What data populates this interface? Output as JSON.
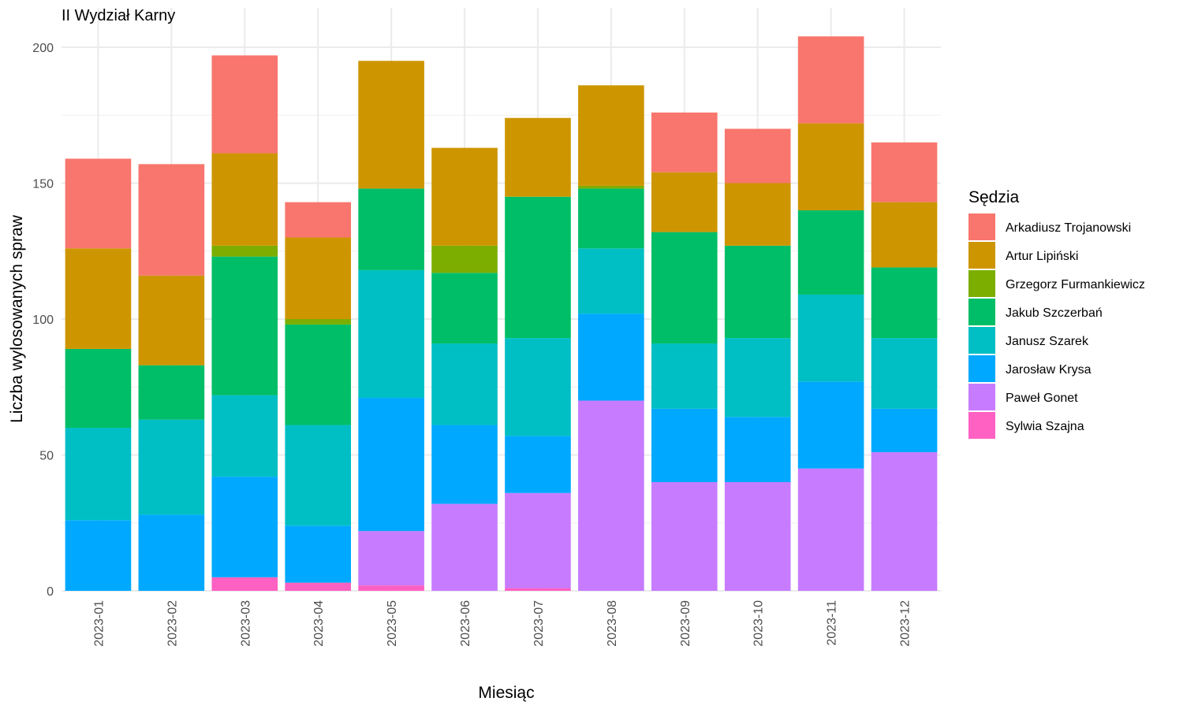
{
  "chart_data": {
    "type": "bar",
    "stacked": true,
    "title": "II Wydział Karny",
    "xlabel": "Miesiąc",
    "ylabel": "Liczba wylosowanych spraw",
    "ylim": [
      0,
      210
    ],
    "yticks": [
      0,
      50,
      100,
      150,
      200
    ],
    "grid": true,
    "legend_position": "right",
    "legend_title": "Sędzia",
    "categories": [
      "2023-01",
      "2023-02",
      "2023-03",
      "2023-04",
      "2023-05",
      "2023-06",
      "2023-07",
      "2023-08",
      "2023-09",
      "2023-10",
      "2023-11",
      "2023-12"
    ],
    "series": [
      {
        "name": "Sylwia Szajna",
        "color": "#FF61C3",
        "values": [
          0,
          0,
          5,
          3,
          2,
          0,
          1,
          0,
          0,
          0,
          0,
          0
        ]
      },
      {
        "name": "Paweł Gonet",
        "color": "#C77CFF",
        "values": [
          0,
          0,
          0,
          0,
          20,
          32,
          35,
          70,
          40,
          40,
          45,
          51
        ]
      },
      {
        "name": "Jarosław Krysa",
        "color": "#00A9FF",
        "values": [
          26,
          28,
          37,
          21,
          49,
          29,
          21,
          32,
          27,
          24,
          32,
          16
        ]
      },
      {
        "name": "Janusz Szarek",
        "color": "#00BFC4",
        "values": [
          34,
          35,
          30,
          37,
          47,
          30,
          36,
          24,
          24,
          29,
          32,
          26
        ]
      },
      {
        "name": "Jakub Szczerbań",
        "color": "#00BE67",
        "values": [
          29,
          20,
          51,
          37,
          30,
          26,
          52,
          22,
          41,
          34,
          31,
          26
        ]
      },
      {
        "name": "Grzegorz Furmankiewicz",
        "color": "#7CAE00",
        "values": [
          0,
          0,
          4,
          2,
          0,
          10,
          0,
          1,
          0,
          0,
          0,
          0
        ]
      },
      {
        "name": "Artur Lipiński",
        "color": "#CD9600",
        "values": [
          37,
          33,
          34,
          30,
          47,
          36,
          29,
          37,
          22,
          23,
          32,
          24
        ]
      },
      {
        "name": "Arkadiusz Trojanowski",
        "color": "#F8766D",
        "values": [
          33,
          41,
          36,
          13,
          0,
          0,
          0,
          0,
          22,
          20,
          32,
          22
        ]
      }
    ],
    "legend_order": [
      "Arkadiusz Trojanowski",
      "Artur Lipiński",
      "Grzegorz Furmankiewicz",
      "Jakub Szczerbań",
      "Janusz Szarek",
      "Jarosław Krysa",
      "Paweł Gonet",
      "Sylwia Szajna"
    ]
  }
}
